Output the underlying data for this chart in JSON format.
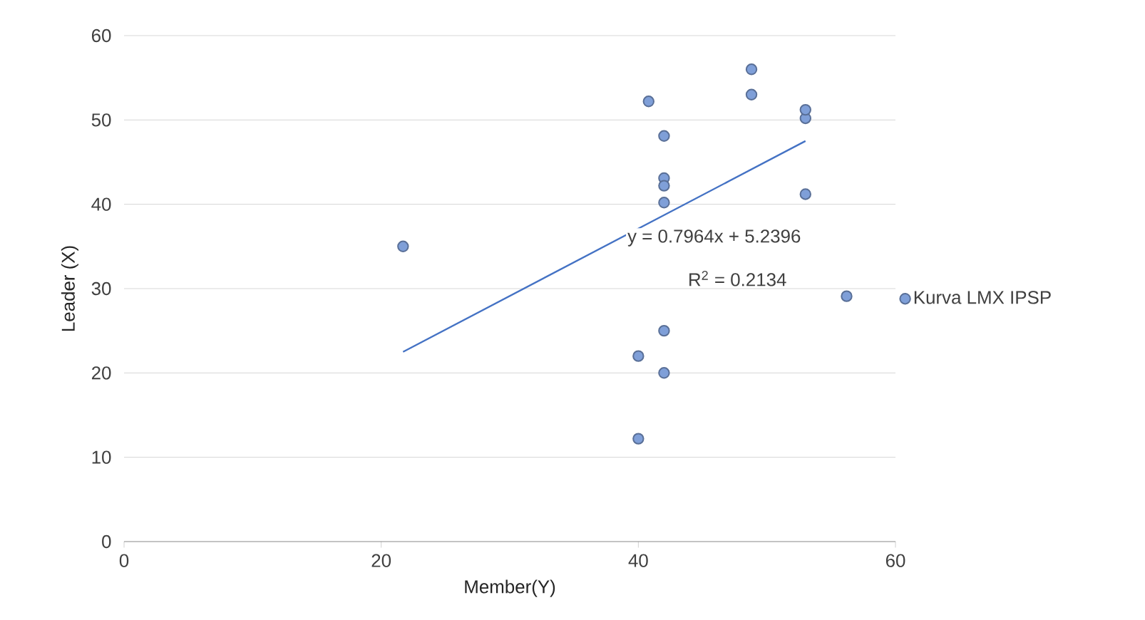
{
  "chart_data": {
    "type": "scatter",
    "xlabel": "Member(Y)",
    "ylabel": "Leader (X)",
    "xlim": [
      0,
      60
    ],
    "xticks": [
      0,
      20,
      40,
      60
    ],
    "ylim": [
      0,
      60
    ],
    "yticks": [
      0,
      10,
      20,
      30,
      40,
      50,
      60
    ],
    "grid": "y",
    "legend": "right",
    "series": [
      {
        "name": "Kurva LMX IPSP",
        "marker": "circle",
        "color": "#7f9fd8",
        "x": [
          21.7,
          40,
          40,
          40.8,
          42,
          42,
          42,
          42,
          42,
          42,
          48.8,
          48.8,
          53,
          53,
          53,
          56.2
        ],
        "values": [
          35,
          22,
          12.2,
          52.2,
          48.1,
          43.1,
          42.2,
          40.2,
          25,
          20,
          56,
          53,
          50.2,
          51.2,
          41.2,
          29.1
        ]
      },
      {
        "type": "line",
        "marker": "none",
        "color": "#4472c4",
        "x": [
          21.7,
          53
        ],
        "values": [
          22.5,
          47.5
        ]
      }
    ],
    "annotations": [
      "y = 0.7964x + 5.2396",
      "R$^{2}$ = 0.2134"
    ]
  }
}
